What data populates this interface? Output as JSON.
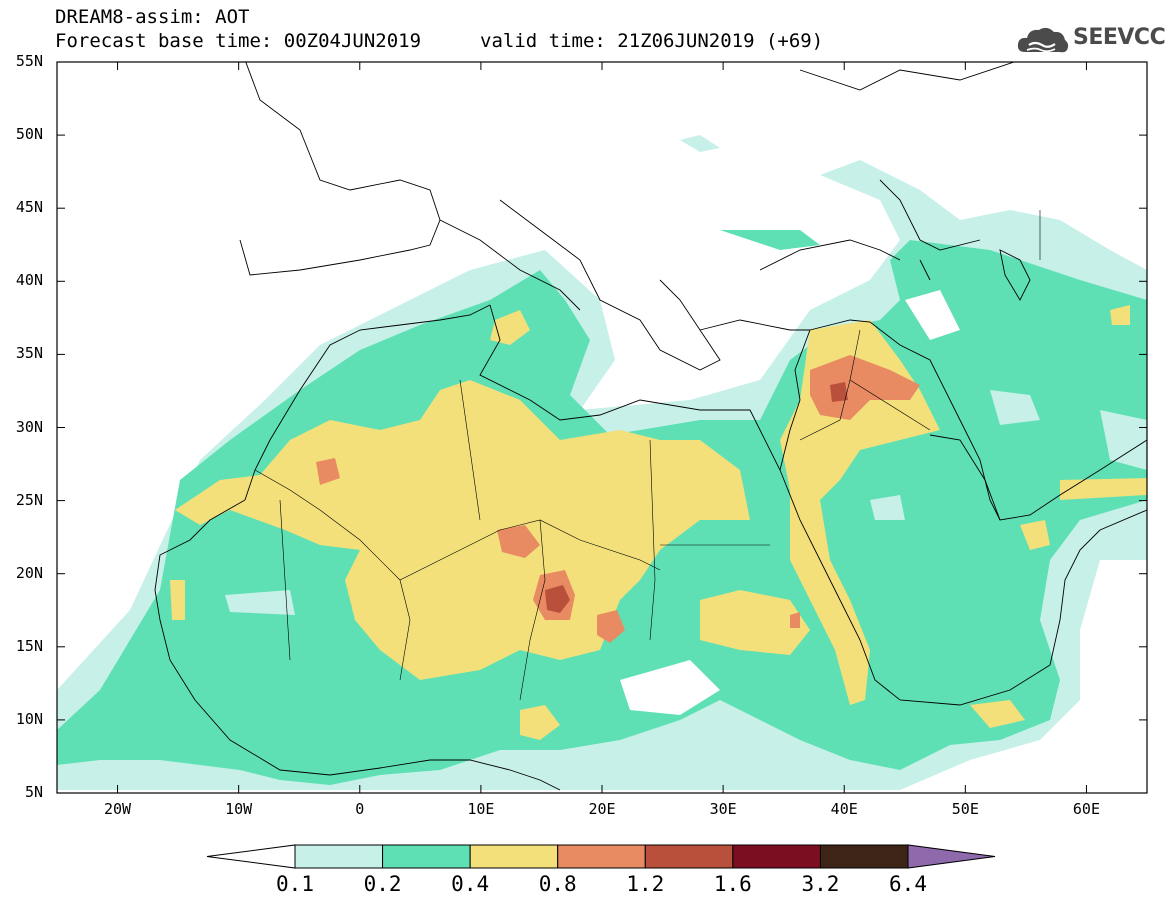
{
  "header": {
    "model_line": "DREAM8-assim: AOT",
    "base_time": "Forecast base time: 00Z04JUN2019",
    "valid_time": "valid time: 21Z06JUN2019 (+69)"
  },
  "logo": {
    "text": "SEEVCCC",
    "icon": "cloud-icon"
  },
  "map": {
    "lat_labels": [
      "55N",
      "50N",
      "45N",
      "40N",
      "35N",
      "30N",
      "25N",
      "20N",
      "15N",
      "10N",
      "5N"
    ],
    "lon_labels": [
      "20W",
      "10W",
      "0",
      "10E",
      "20E",
      "30E",
      "40E",
      "50E",
      "60E"
    ],
    "lon_range": [
      -25,
      65
    ],
    "lat_range": [
      5,
      55
    ]
  },
  "legend": {
    "labels": [
      "0.1",
      "0.2",
      "0.4",
      "0.8",
      "1.2",
      "1.6",
      "3.2",
      "6.4"
    ],
    "colors": [
      "#c6f0e8",
      "#5ee0b4",
      "#f3e07a",
      "#e88b62",
      "#b8503c",
      "#7c0e22",
      "#3e2416",
      "#8e6aac"
    ],
    "under_color": "#ffffff",
    "over_color": "#8e6aac"
  }
}
